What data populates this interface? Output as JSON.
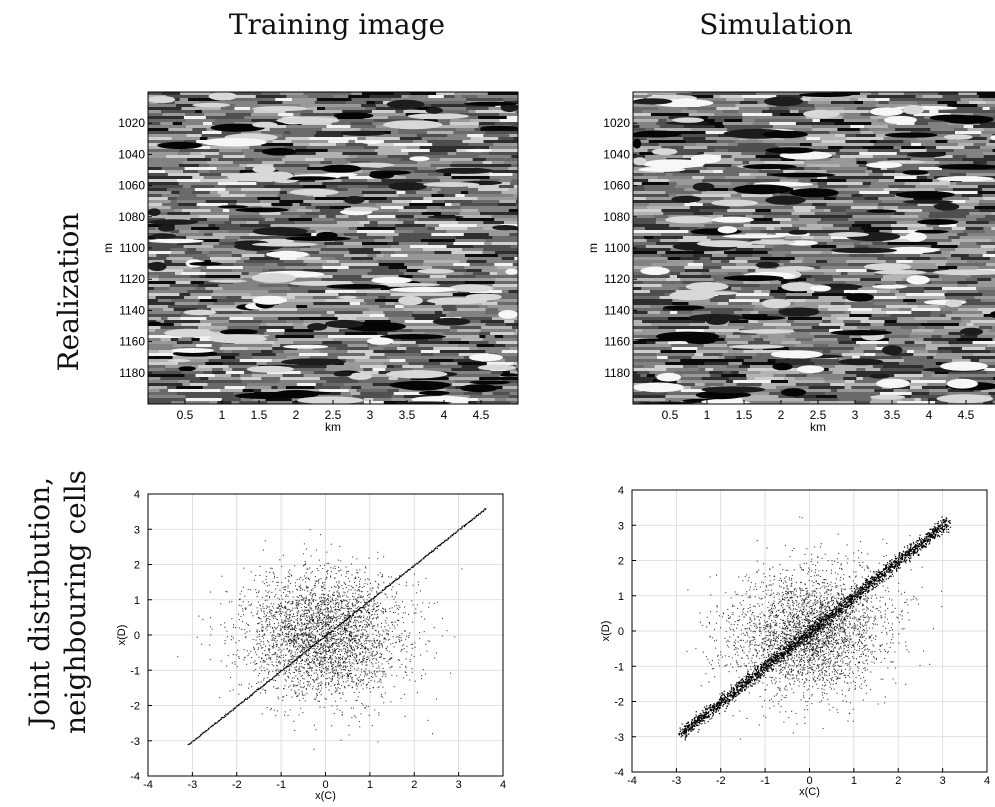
{
  "headers": {
    "col_left": "Training image",
    "col_right": "Simulation",
    "row_top": "Realization",
    "row_bottom_line1": "Joint distribution,",
    "row_bottom_line2": "neighbouring cells"
  },
  "colors": {
    "background": "#ffffff",
    "points": "#000000",
    "grid": "#d8d8d8",
    "axis": "#000000"
  },
  "chart_data": [
    {
      "id": "realization-training",
      "type": "heatmap",
      "colormap": "grayscale",
      "xlabel": "km",
      "ylabel": "m",
      "xlim": [
        0,
        5
      ],
      "ylim": [
        1200,
        1000
      ],
      "xticks": [
        0.5,
        1,
        1.5,
        2,
        2.5,
        3,
        3.5,
        4,
        4.5
      ],
      "xtick_labels": [
        "0.5",
        "1",
        "1.5",
        "2",
        "2.5",
        "3",
        "3.5",
        "4",
        "4.5"
      ],
      "yticks": [
        1020,
        1040,
        1060,
        1080,
        1100,
        1120,
        1140,
        1160,
        1180
      ],
      "ytick_labels": [
        "1020",
        "1040",
        "1060",
        "1080",
        "1100",
        "1120",
        "1140",
        "1160",
        "1180"
      ],
      "seed": 11
    },
    {
      "id": "realization-simulation",
      "type": "heatmap",
      "colormap": "grayscale",
      "xlabel": "km",
      "ylabel": "m",
      "xlim": [
        0,
        5
      ],
      "ylim": [
        1200,
        1000
      ],
      "xticks": [
        0.5,
        1,
        1.5,
        2,
        2.5,
        3,
        3.5,
        4,
        4.5
      ],
      "xtick_labels": [
        "0.5",
        "1",
        "1.5",
        "2",
        "2.5",
        "3",
        "3.5",
        "4",
        "4.5"
      ],
      "yticks": [
        1020,
        1040,
        1060,
        1080,
        1100,
        1120,
        1140,
        1160,
        1180
      ],
      "ytick_labels": [
        "1020",
        "1040",
        "1060",
        "1080",
        "1100",
        "1120",
        "1140",
        "1160",
        "1180"
      ],
      "seed": 29
    },
    {
      "id": "joint-training",
      "type": "scatter",
      "xlabel": "x(C)",
      "ylabel": "x(D)",
      "xlim": [
        -4,
        4
      ],
      "ylim": [
        -4,
        4
      ],
      "xticks": [
        -4,
        -3,
        -2,
        -1,
        0,
        1,
        2,
        3,
        4
      ],
      "yticks": [
        -4,
        -3,
        -2,
        -1,
        0,
        1,
        2,
        3,
        4
      ],
      "xtick_labels": [
        "-4",
        "-3",
        "-2",
        "-1",
        "0",
        "1",
        "2",
        "3",
        "4"
      ],
      "ytick_labels": [
        "-4",
        "-3",
        "-2",
        "-1",
        "0",
        "1",
        "2",
        "3",
        "4"
      ],
      "grid": true,
      "cloud": {
        "n": 3200,
        "sd": 0.9,
        "corr": 0.0
      },
      "line": {
        "from": -3.1,
        "to": 3.6,
        "n": 420,
        "jitter": 0.01
      },
      "seed": 5
    },
    {
      "id": "joint-simulation",
      "type": "scatter",
      "xlabel": "x(C)",
      "ylabel": "x(D)",
      "xlim": [
        -4,
        4
      ],
      "ylim": [
        -4,
        4
      ],
      "xticks": [
        -4,
        -3,
        -2,
        -1,
        0,
        1,
        2,
        3,
        4
      ],
      "yticks": [
        -4,
        -3,
        -2,
        -1,
        0,
        1,
        2,
        3,
        4
      ],
      "xtick_labels": [
        "-4",
        "-3",
        "-2",
        "-1",
        "0",
        "1",
        "2",
        "3",
        "4"
      ],
      "ytick_labels": [
        "-4",
        "-3",
        "-2",
        "-1",
        "0",
        "1",
        "2",
        "3",
        "4"
      ],
      "grid": true,
      "cloud": {
        "n": 3000,
        "sd": 0.9,
        "corr": 0.15
      },
      "line": {
        "from": -2.9,
        "to": 3.1,
        "n": 2400,
        "jitter": 0.09
      },
      "seed": 17
    }
  ]
}
